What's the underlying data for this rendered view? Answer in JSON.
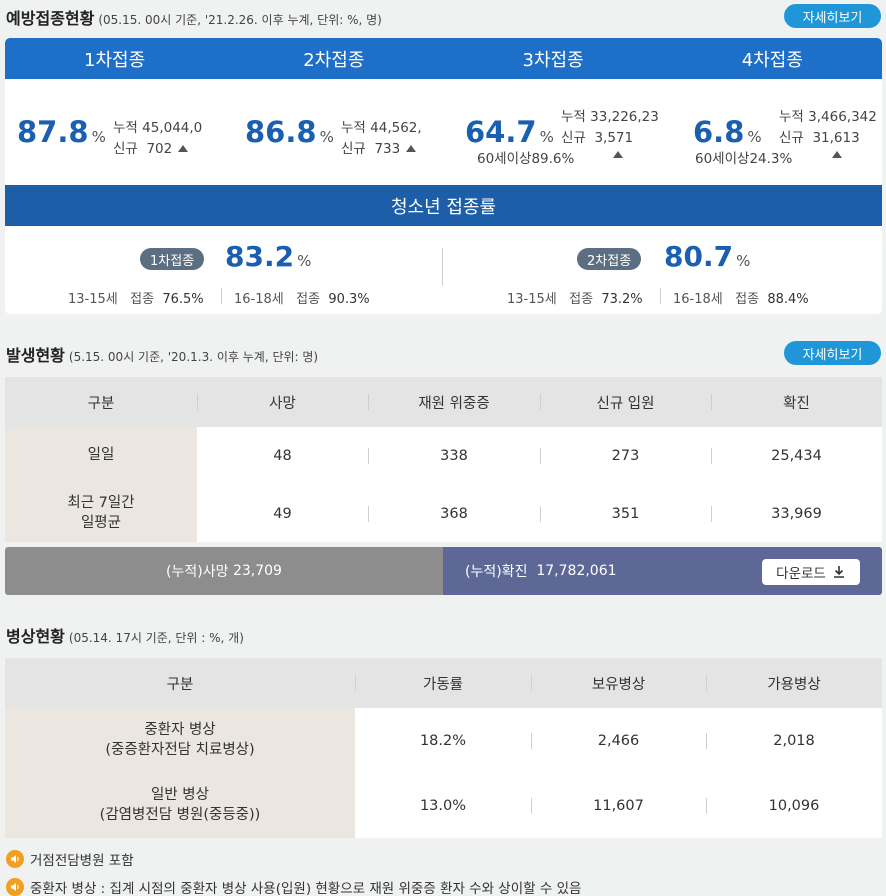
{
  "vaccination": {
    "title": "예방접종현황",
    "subtitle": "(05.15. 00시 기준, '21.2.26. 이후 누계, 단위: %, 명)",
    "more_label": "자세히보기",
    "doses": [
      {
        "label": "1차접종",
        "pct": "87.8",
        "unit": "%",
        "cum_label": "누적",
        "cum": "45,044,0",
        "new_label": "신규",
        "new": "702"
      },
      {
        "label": "2차접종",
        "pct": "86.8",
        "unit": "%",
        "cum_label": "누적",
        "cum": "44,562,",
        "new_label": "신규",
        "new": "733"
      },
      {
        "label": "3차접종",
        "pct": "64.7",
        "unit": "%",
        "cum_label": "누적",
        "cum": "33,226,23",
        "new_label": "신규",
        "new": "3,571",
        "age_label": "60세이상",
        "age_pct": "89.6%"
      },
      {
        "label": "4차접종",
        "pct": "6.8",
        "unit": "%",
        "cum_label": "누적",
        "cum": "3,466,342",
        "new_label": "신규",
        "new": "31,613",
        "age_label": "60세이상",
        "age_pct": "24.3%"
      }
    ],
    "youth": {
      "title": "청소년 접종률",
      "items": [
        {
          "pill": "1차접종",
          "pct": "83.2",
          "unit": "%",
          "a_age": "13-15세",
          "a_lbl": "접종",
          "a_val": "76.5%",
          "b_age": "16-18세",
          "b_lbl": "접종",
          "b_val": "90.3%"
        },
        {
          "pill": "2차접종",
          "pct": "80.7",
          "unit": "%",
          "a_age": "13-15세",
          "a_lbl": "접종",
          "a_val": "73.2%",
          "b_age": "16-18세",
          "b_lbl": "접종",
          "b_val": "88.4%"
        }
      ]
    }
  },
  "outbreak": {
    "title": "발생현황",
    "subtitle": "(5.15. 00시 기준, '20.1.3. 이후 누계, 단위: 명)",
    "more_label": "자세히보기",
    "headers": [
      "구분",
      "사망",
      "재원 위중증",
      "신규 입원",
      "확진"
    ],
    "rows": [
      {
        "label": "일일",
        "cells": [
          "48",
          "338",
          "273",
          "25,434"
        ]
      },
      {
        "label": "최근 7일간\n일평균",
        "cells": [
          "49",
          "368",
          "351",
          "33,969"
        ]
      }
    ],
    "totals": {
      "death_label": "(누적)사망",
      "death": "23,709",
      "confirmed_label": "(누적)확진",
      "confirmed": "17,782,061",
      "download_label": "다운로드"
    }
  },
  "beds": {
    "title": "병상현황",
    "subtitle": "(05.14. 17시 기준, 단위 : %, 개)",
    "headers": [
      "구분",
      "가동률",
      "보유병상",
      "가용병상"
    ],
    "rows": [
      {
        "label": "중환자 병상\n(중증환자전담 치료병상)",
        "cells": [
          "18.2%",
          "2,466",
          "2,018"
        ]
      },
      {
        "label": "일반 병상\n(감염병전담 병원(중등중))",
        "cells": [
          "13.0%",
          "11,607",
          "10,096"
        ]
      }
    ],
    "notes": [
      "거점전담병원 포함",
      "중환자 병상 : 집계 시점의 중환자 병상 사용(입원) 현황으로 재원 위중증 환자 수와 상이할 수 있음"
    ]
  },
  "colors": {
    "primary_blue": "#1e6fc8",
    "accent_btn": "#1f96d8",
    "pct_text": "#1a5fb0",
    "confirmed_bg": "#5e6896",
    "death_bg": "#8d8d8d"
  }
}
